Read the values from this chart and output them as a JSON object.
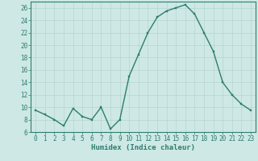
{
  "x": [
    0,
    1,
    2,
    3,
    4,
    5,
    6,
    7,
    8,
    9,
    10,
    11,
    12,
    13,
    14,
    15,
    16,
    17,
    18,
    19,
    20,
    21,
    22,
    23
  ],
  "y": [
    9.5,
    8.8,
    8.0,
    7.0,
    9.8,
    8.5,
    8.0,
    10.0,
    6.5,
    8.0,
    15.0,
    18.5,
    22.0,
    24.5,
    25.5,
    26.0,
    26.5,
    25.0,
    22.0,
    19.0,
    14.0,
    12.0,
    10.5,
    9.5
  ],
  "xlabel": "Humidex (Indice chaleur)",
  "line_color": "#2e7d6e",
  "marker_color": "#2e7d6e",
  "bg_color": "#cde8e5",
  "grid_color": "#b8d4d0",
  "tick_color": "#2e7d6e",
  "axis_color": "#2e7d6e",
  "ylim": [
    6,
    27
  ],
  "xlim": [
    -0.5,
    23.5
  ],
  "yticks": [
    6,
    8,
    10,
    12,
    14,
    16,
    18,
    20,
    22,
    24,
    26
  ],
  "xticks": [
    0,
    1,
    2,
    3,
    4,
    5,
    6,
    7,
    8,
    9,
    10,
    11,
    12,
    13,
    14,
    15,
    16,
    17,
    18,
    19,
    20,
    21,
    22,
    23
  ],
  "xlabel_fontsize": 6.5,
  "tick_fontsize": 5.5,
  "linewidth": 1.0,
  "markersize": 2.0
}
